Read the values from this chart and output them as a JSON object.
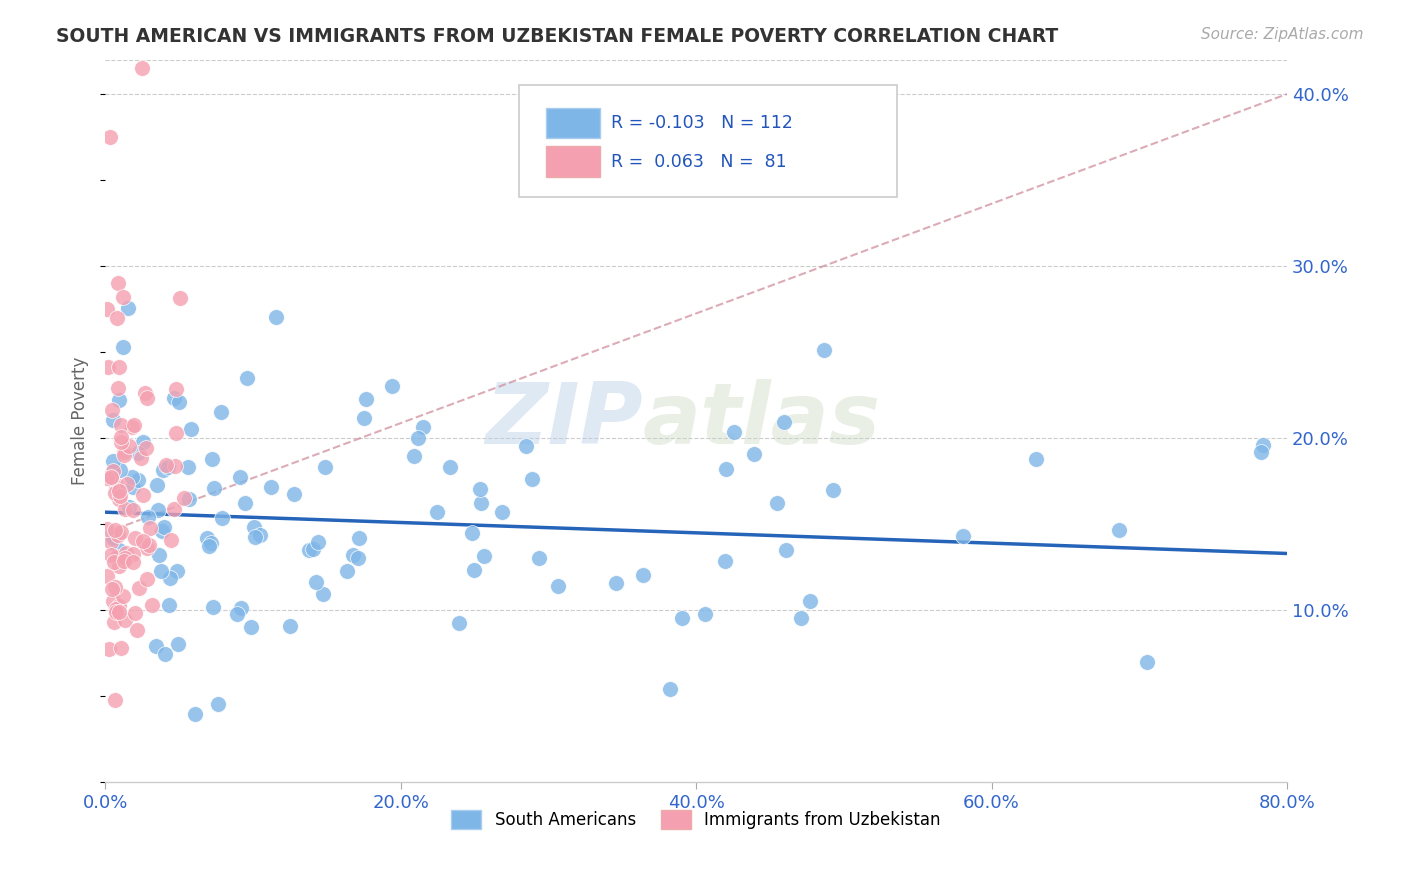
{
  "title": "SOUTH AMERICAN VS IMMIGRANTS FROM UZBEKISTAN FEMALE POVERTY CORRELATION CHART",
  "source": "Source: ZipAtlas.com",
  "ylabel_label": "Female Poverty",
  "legend_label1": "South Americans",
  "legend_label2": "Immigrants from Uzbekistan",
  "R1": -0.103,
  "N1": 112,
  "R2": 0.063,
  "N2": 81,
  "color_blue": "#7eb6e8",
  "color_pink": "#f4a0b0",
  "trendline_blue": "#1a5cb5",
  "trendline_pink": "#c88090",
  "watermark_zip": "ZIP",
  "watermark_atlas": "atlas",
  "xlim": [
    0.0,
    0.8
  ],
  "ylim": [
    0.0,
    0.42
  ]
}
